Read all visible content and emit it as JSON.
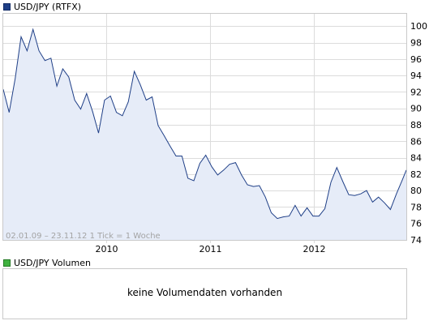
{
  "price_legend": {
    "label": "USD/JPY (RTFX)",
    "color": "#1f3f87"
  },
  "volume_legend": {
    "label": "USD/JPY Volumen",
    "color": "#3fb13f"
  },
  "volume_message": "keine Volumendaten vorhanden",
  "chart_data": {
    "type": "area",
    "title": "USD/JPY (RTFX)",
    "footnote": "02.01.09 – 23.11.12   1 Tick = 1 Woche",
    "x_tick_labels": [
      "2010",
      "2011",
      "2012"
    ],
    "y_tick_labels": [
      "74",
      "76",
      "78",
      "80",
      "82",
      "84",
      "86",
      "88",
      "90",
      "92",
      "94",
      "96",
      "98",
      "100"
    ],
    "ylim": [
      74,
      101.5
    ],
    "xlim": [
      "2009-01-02",
      "2012-11-23"
    ],
    "grid": true,
    "line_color": "#1f3f87",
    "fill_color": "#e6ecf8",
    "series": [
      {
        "x": [
          "2009-01-02",
          "2009-01-23",
          "2009-02-13",
          "2009-03-06",
          "2009-03-27",
          "2009-04-17",
          "2009-05-08",
          "2009-05-29",
          "2009-06-19",
          "2009-07-10",
          "2009-07-31",
          "2009-08-21",
          "2009-09-11",
          "2009-10-02",
          "2009-10-23",
          "2009-11-13",
          "2009-12-04",
          "2009-12-25",
          "2010-01-15",
          "2010-02-05",
          "2010-02-26",
          "2010-03-19",
          "2010-04-09",
          "2010-04-30",
          "2010-05-21",
          "2010-06-11",
          "2010-07-02",
          "2010-07-23",
          "2010-08-13",
          "2010-09-03",
          "2010-09-24",
          "2010-10-15",
          "2010-11-05",
          "2010-11-26",
          "2010-12-17",
          "2011-01-07",
          "2011-01-28",
          "2011-02-18",
          "2011-03-11",
          "2011-04-01",
          "2011-04-22",
          "2011-05-13",
          "2011-06-03",
          "2011-06-24",
          "2011-07-15",
          "2011-08-05",
          "2011-08-26",
          "2011-09-16",
          "2011-10-07",
          "2011-10-28",
          "2011-11-18",
          "2011-12-09",
          "2011-12-30",
          "2012-01-20",
          "2012-02-10",
          "2012-03-02",
          "2012-03-23",
          "2012-04-13",
          "2012-05-04",
          "2012-05-25",
          "2012-06-15",
          "2012-07-06",
          "2012-07-27",
          "2012-08-17",
          "2012-09-07",
          "2012-09-28",
          "2012-10-19",
          "2012-11-09",
          "2012-11-23"
        ],
        "values": [
          92.3,
          89.5,
          93.6,
          98.7,
          97.0,
          99.6,
          97.0,
          95.8,
          96.1,
          92.7,
          94.8,
          93.8,
          91.0,
          89.9,
          91.8,
          89.6,
          87.0,
          91.0,
          91.5,
          89.5,
          89.1,
          90.8,
          94.5,
          92.9,
          91.0,
          91.4,
          87.9,
          86.7,
          85.4,
          84.2,
          84.2,
          81.5,
          81.2,
          83.3,
          84.3,
          82.9,
          81.9,
          82.5,
          83.2,
          83.4,
          81.9,
          80.7,
          80.5,
          80.6,
          79.2,
          77.3,
          76.6,
          76.8,
          76.9,
          78.2,
          76.9,
          77.9,
          76.9,
          76.9,
          77.8,
          81.0,
          82.8,
          81.1,
          79.5,
          79.4,
          79.6,
          80.0,
          78.6,
          79.2,
          78.5,
          77.7,
          79.6,
          81.3,
          82.5
        ]
      }
    ]
  }
}
